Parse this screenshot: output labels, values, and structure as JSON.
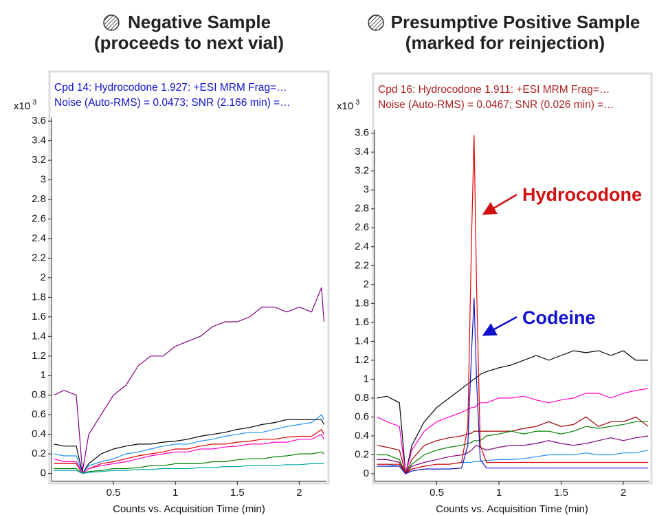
{
  "chart_data": [
    {
      "type": "line",
      "title": "Negative Sample",
      "subtitle": "(proceeds to next vial)",
      "header_lines": [
        "Cpd 14: Hydrocodone 1.927: +ESI MRM Frag=…",
        "Noise (Auto-RMS) = 0.0473; SNR (2.166 min) =…"
      ],
      "header_color": "#1010d0",
      "y_scale_label": "x10",
      "y_scale_exponent": "3",
      "x_label": "Counts vs. Acquisition Time (min)",
      "xlim": [
        0,
        2.22
      ],
      "xticks": [
        0.5,
        1,
        1.5,
        2
      ],
      "ylim": [
        -0.08,
        4.1
      ],
      "yticks": [
        0,
        0.2,
        0.4,
        0.6,
        0.8,
        1,
        1.2,
        1.4,
        1.6,
        1.8,
        2,
        2.2,
        2.4,
        2.6,
        2.8,
        3,
        3.2,
        3.4,
        3.6
      ],
      "x": [
        0.02,
        0.1,
        0.2,
        0.25,
        0.3,
        0.4,
        0.5,
        0.6,
        0.7,
        0.8,
        0.9,
        1.0,
        1.1,
        1.2,
        1.3,
        1.4,
        1.5,
        1.6,
        1.7,
        1.8,
        1.9,
        2.0,
        2.1,
        2.18,
        2.2
      ],
      "series": [
        {
          "color": "#800080",
          "values": [
            0.8,
            0.85,
            0.8,
            0.02,
            0.4,
            0.6,
            0.8,
            0.9,
            1.1,
            1.2,
            1.2,
            1.3,
            1.35,
            1.4,
            1.5,
            1.55,
            1.55,
            1.6,
            1.7,
            1.7,
            1.65,
            1.7,
            1.65,
            1.9,
            1.55
          ]
        },
        {
          "color": "#000000",
          "values": [
            0.3,
            0.28,
            0.28,
            0,
            0.1,
            0.2,
            0.25,
            0.28,
            0.3,
            0.3,
            0.32,
            0.33,
            0.35,
            0.38,
            0.4,
            0.42,
            0.45,
            0.47,
            0.5,
            0.52,
            0.55,
            0.55,
            0.55,
            0.55,
            0.5
          ]
        },
        {
          "color": "#1e90ff",
          "values": [
            0.2,
            0.18,
            0.18,
            0,
            0.08,
            0.12,
            0.15,
            0.2,
            0.22,
            0.25,
            0.28,
            0.3,
            0.3,
            0.33,
            0.35,
            0.38,
            0.4,
            0.42,
            0.42,
            0.45,
            0.48,
            0.5,
            0.52,
            0.6,
            0.55
          ]
        },
        {
          "color": "#e00000",
          "values": [
            0.1,
            0.1,
            0.1,
            0,
            0.05,
            0.1,
            0.12,
            0.15,
            0.18,
            0.2,
            0.22,
            0.25,
            0.25,
            0.28,
            0.3,
            0.3,
            0.32,
            0.33,
            0.35,
            0.35,
            0.37,
            0.38,
            0.38,
            0.45,
            0.4
          ]
        },
        {
          "color": "#ff00cc",
          "values": [
            0.15,
            0.12,
            0.12,
            0,
            0.05,
            0.08,
            0.1,
            0.12,
            0.15,
            0.18,
            0.2,
            0.22,
            0.22,
            0.25,
            0.25,
            0.27,
            0.28,
            0.3,
            0.3,
            0.32,
            0.32,
            0.35,
            0.35,
            0.4,
            0.35
          ]
        },
        {
          "color": "#008000",
          "values": [
            0.05,
            0.05,
            0.05,
            0,
            0.02,
            0.03,
            0.05,
            0.05,
            0.06,
            0.08,
            0.08,
            0.1,
            0.1,
            0.1,
            0.12,
            0.12,
            0.14,
            0.15,
            0.15,
            0.17,
            0.18,
            0.2,
            0.2,
            0.22,
            0.2
          ]
        },
        {
          "color": "#00aaaa",
          "values": [
            0.03,
            0.03,
            0.03,
            0,
            0.01,
            0.02,
            0.03,
            0.03,
            0.04,
            0.04,
            0.05,
            0.05,
            0.05,
            0.06,
            0.06,
            0.07,
            0.07,
            0.08,
            0.08,
            0.08,
            0.09,
            0.09,
            0.1,
            0.1,
            0.1
          ]
        }
      ]
    },
    {
      "type": "line",
      "title": "Presumptive Positive Sample",
      "subtitle": "(marked for reinjection)",
      "header_lines": [
        "Cpd 16: Hydrocodone 1.911: +ESI MRM Frag=…",
        "Noise (Auto-RMS) = 0.0467; SNR (0.026 min) =…"
      ],
      "header_color": "#b02020",
      "y_scale_label": "x10",
      "y_scale_exponent": "3",
      "x_label": "Counts vs. Acquisition Time (min)",
      "xlim": [
        0,
        2.21
      ],
      "xticks": [
        0.5,
        1,
        1.5,
        2
      ],
      "ylim": [
        -0.08,
        4.23
      ],
      "yticks": [
        0,
        0.2,
        0.4,
        0.6,
        0.8,
        1,
        1.2,
        1.4,
        1.6,
        1.8,
        2,
        2.2,
        2.4,
        2.6,
        2.8,
        3,
        3.2,
        3.4,
        3.6
      ],
      "annotations": [
        {
          "text": "Hydrocodone",
          "color": "#d01010"
        },
        {
          "text": "Codeine",
          "color": "#1010d0"
        }
      ],
      "x": [
        0.02,
        0.1,
        0.2,
        0.25,
        0.3,
        0.4,
        0.5,
        0.6,
        0.7,
        0.75,
        0.78,
        0.8,
        0.82,
        0.85,
        0.9,
        1.0,
        1.1,
        1.2,
        1.3,
        1.4,
        1.5,
        1.6,
        1.7,
        1.8,
        1.9,
        2.0,
        2.1,
        2.2
      ],
      "series": [
        {
          "color": "#000000",
          "values": [
            0.8,
            0.82,
            0.75,
            0,
            0.3,
            0.55,
            0.7,
            0.8,
            0.9,
            0.95,
            0.98,
            1.0,
            1.02,
            1.05,
            1.08,
            1.12,
            1.15,
            1.2,
            1.25,
            1.2,
            1.25,
            1.3,
            1.28,
            1.3,
            1.25,
            1.3,
            1.2,
            1.2
          ]
        },
        {
          "color": "#ff00cc",
          "values": [
            0.6,
            0.55,
            0.5,
            0,
            0.25,
            0.45,
            0.55,
            0.6,
            0.65,
            0.68,
            0.7,
            0.7,
            0.72,
            0.75,
            0.75,
            0.8,
            0.8,
            0.82,
            0.78,
            0.75,
            0.78,
            0.8,
            0.85,
            0.85,
            0.8,
            0.85,
            0.88,
            0.9
          ]
        },
        {
          "color": "#a00000",
          "values": [
            0.3,
            0.28,
            0.25,
            0,
            0.15,
            0.3,
            0.35,
            0.38,
            0.4,
            0.42,
            0.43,
            0.45,
            0.45,
            0.45,
            0.45,
            0.45,
            0.45,
            0.48,
            0.5,
            0.55,
            0.5,
            0.52,
            0.6,
            0.5,
            0.55,
            0.55,
            0.6,
            0.5
          ]
        },
        {
          "color": "#008000",
          "values": [
            0.2,
            0.2,
            0.15,
            0,
            0.1,
            0.2,
            0.25,
            0.28,
            0.3,
            0.32,
            0.33,
            0.35,
            0.35,
            0.35,
            0.4,
            0.42,
            0.45,
            0.42,
            0.45,
            0.45,
            0.42,
            0.45,
            0.5,
            0.48,
            0.5,
            0.52,
            0.55,
            0.55
          ]
        },
        {
          "color": "#800080",
          "values": [
            0.15,
            0.15,
            0.12,
            0,
            0.08,
            0.12,
            0.15,
            0.18,
            0.2,
            0.22,
            0.25,
            0.28,
            0.3,
            0.28,
            0.25,
            0.28,
            0.3,
            0.3,
            0.32,
            0.35,
            0.32,
            0.3,
            0.32,
            0.35,
            0.38,
            0.35,
            0.38,
            0.4
          ]
        },
        {
          "color": "#1e90ff",
          "values": [
            0.1,
            0.1,
            0.08,
            0,
            0.05,
            0.08,
            0.1,
            0.1,
            0.12,
            0.12,
            0.12,
            0.13,
            0.13,
            0.13,
            0.14,
            0.15,
            0.15,
            0.16,
            0.18,
            0.2,
            0.2,
            0.2,
            0.22,
            0.2,
            0.2,
            0.22,
            0.22,
            0.25
          ]
        },
        {
          "color": "#e00000",
          "values": [
            0.1,
            0.1,
            0.1,
            0,
            0.05,
            0.08,
            0.1,
            0.1,
            0.12,
            0.5,
            2.5,
            3.58,
            2.0,
            0.3,
            0.12,
            0.12,
            0.12,
            0.12,
            0.12,
            0.12,
            0.12,
            0.12,
            0.12,
            0.12,
            0.12,
            0.12,
            0.12,
            0.12
          ]
        },
        {
          "color": "#1010c0",
          "values": [
            0.08,
            0.08,
            0.08,
            0,
            0.03,
            0.05,
            0.05,
            0.05,
            0.06,
            0.3,
            1.3,
            1.86,
            1.0,
            0.15,
            0.06,
            0.06,
            0.06,
            0.06,
            0.06,
            0.06,
            0.06,
            0.06,
            0.06,
            0.06,
            0.06,
            0.06,
            0.06,
            0.06
          ]
        }
      ]
    }
  ]
}
